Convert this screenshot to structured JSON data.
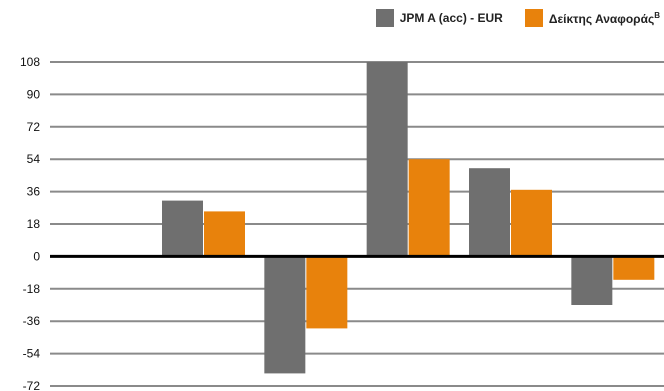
{
  "chart_data": {
    "type": "bar",
    "categories": [
      "",
      "",
      "",
      "",
      "",
      ""
    ],
    "series": [
      {
        "name": "JPM A (acc) - EUR",
        "color": "#6f6f6f",
        "values": [
          null,
          31,
          -65,
          108,
          49,
          -27
        ]
      },
      {
        "name": "Δείκτης Αναφοράς",
        "name_superscript": "B",
        "color": "#e8820c",
        "values": [
          null,
          25,
          -40,
          54,
          37,
          -13
        ]
      }
    ],
    "yticks": [
      "108",
      "90",
      "72",
      "54",
      "36",
      "18",
      "0",
      "-18",
      "-36",
      "-54",
      "-72"
    ],
    "ylim": [
      -72,
      108
    ],
    "grid": true,
    "legend_position": "top-right"
  }
}
